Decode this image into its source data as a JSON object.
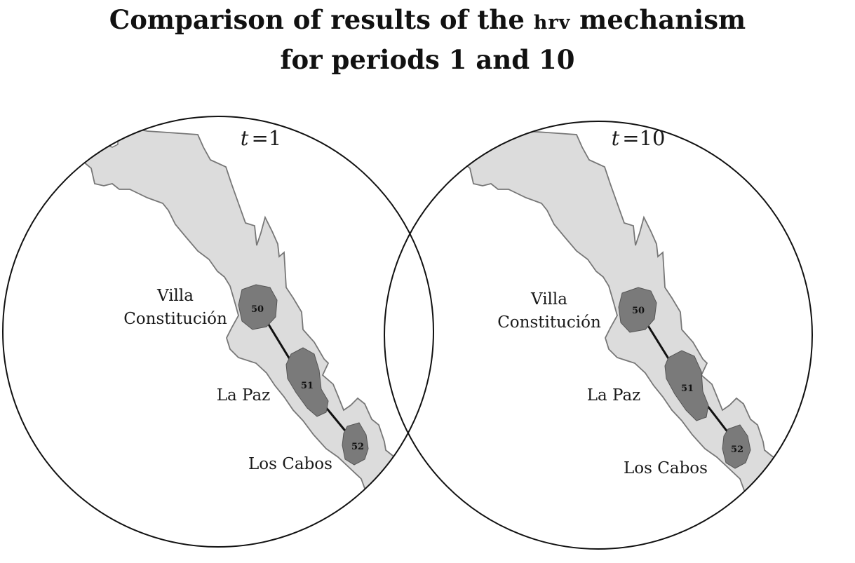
{
  "title": {
    "line1_prefix": "Comparison of results of the ",
    "line1_smallcaps": "hrv",
    "line1_suffix": " mechanism",
    "line2": "for periods 1 and 10"
  },
  "colors": {
    "land": "#dcdcdc",
    "land_border": "#777777",
    "region": "#7a7a7a",
    "circle": "#111111",
    "link": "#111111"
  },
  "panels": [
    {
      "t_label": "t",
      "t_value": "=1",
      "labels": {
        "villa_line1": "Villa",
        "villa_line2": "Constitución",
        "la_paz": "La Paz",
        "los_cabos": "Los Cabos"
      },
      "regions": [
        "50",
        "51",
        "52"
      ],
      "links": [
        [
          "50",
          "51"
        ],
        [
          "51",
          "52"
        ]
      ]
    },
    {
      "t_label": "t",
      "t_value": "=10",
      "labels": {
        "villa_line1": "Villa",
        "villa_line2": "Constitución",
        "la_paz": "La Paz",
        "los_cabos": "Los Cabos"
      },
      "regions": [
        "50",
        "51",
        "52"
      ],
      "links": [
        [
          "50",
          "51"
        ],
        [
          "51",
          "52"
        ]
      ]
    }
  ]
}
